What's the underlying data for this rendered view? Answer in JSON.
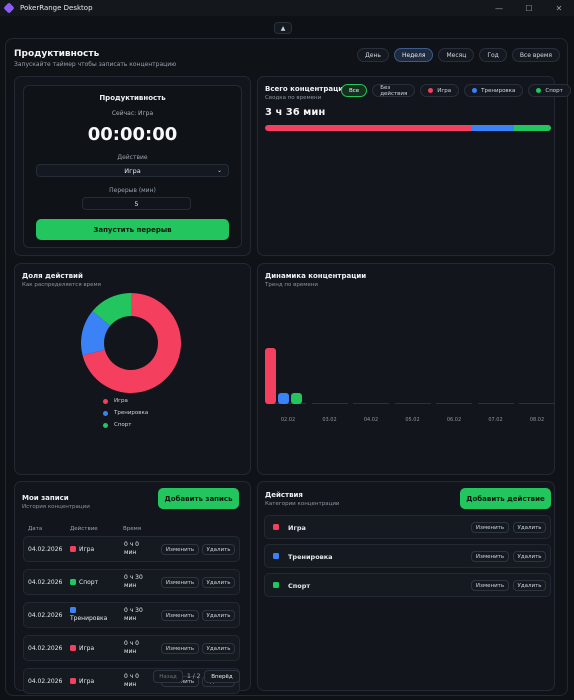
{
  "window": {
    "title": "PokerRange Desktop",
    "min_glyph": "—",
    "max_glyph": "☐",
    "close_glyph": "✕"
  },
  "collapse_glyph": "▲",
  "header": {
    "title": "Продуктивность",
    "subtitle": "Запускайте таймер чтобы записать концентрацию"
  },
  "periods": [
    {
      "label": "День",
      "active": false
    },
    {
      "label": "Неделя",
      "active": true
    },
    {
      "label": "Месяц",
      "active": false
    },
    {
      "label": "Год",
      "active": false
    },
    {
      "label": "Все время",
      "active": false
    }
  ],
  "timer": {
    "title": "Продуктивность",
    "now_text": "Сейчас: Игра",
    "time": "00:00:00",
    "action_label": "Действие",
    "action_value": "Игра",
    "break_label": "Перерыв (мин)",
    "break_value": "5",
    "start_button": "Запустить перерыв"
  },
  "total": {
    "title": "Всего концентрации",
    "subtitle": "Сводка по времени",
    "value": "3 ч 36 мин",
    "filters": [
      {
        "label": "Все",
        "active": true,
        "color": ""
      },
      {
        "label": "Без действия",
        "active": false,
        "color": ""
      },
      {
        "label": "Игра",
        "active": false,
        "color": "#f43f5e"
      },
      {
        "label": "Тренировка",
        "active": false,
        "color": "#3b82f6"
      },
      {
        "label": "Спорт",
        "active": false,
        "color": "#22c55e"
      }
    ],
    "bar_fractions": [
      0.72,
      0.15,
      0.13
    ]
  },
  "share": {
    "title": "Доля действий",
    "subtitle": "Как распределяется время",
    "legend": [
      {
        "label": "Игра",
        "color": "#f43f5e"
      },
      {
        "label": "Тренировка",
        "color": "#3b82f6"
      },
      {
        "label": "Спорт",
        "color": "#22c55e"
      }
    ]
  },
  "dynamics": {
    "title": "Динамика концентрации",
    "subtitle": "Тренд по времени"
  },
  "chart_data": [
    {
      "type": "pie",
      "title": "Доля действий",
      "categories": [
        "Игра",
        "Тренировка",
        "Спорт"
      ],
      "values": [
        71,
        15,
        14
      ],
      "colors": [
        "#f43f5e",
        "#3b82f6",
        "#22c55e"
      ]
    },
    {
      "type": "bar",
      "title": "Динамика концентрации",
      "categories": [
        "02.02",
        "03.02",
        "04.02",
        "05.02",
        "06.02",
        "07.02",
        "08.02"
      ],
      "series": [
        {
          "name": "Игра",
          "color": "#f43f5e",
          "values": [
            2.5,
            0,
            0,
            0,
            0,
            0,
            0
          ]
        },
        {
          "name": "Тренировка",
          "color": "#3b82f6",
          "values": [
            0.5,
            0,
            0,
            0,
            0,
            0,
            0
          ]
        },
        {
          "name": "Спорт",
          "color": "#22c55e",
          "values": [
            0.5,
            0,
            0,
            0,
            0,
            0,
            0
          ]
        }
      ]
    }
  ],
  "records": {
    "title": "Мои записи",
    "subtitle": "История концентрации",
    "add_button": "Добавить запись",
    "headers": [
      "Дата",
      "Действие",
      "Время"
    ],
    "rows": [
      {
        "date": "04.02.2026",
        "action": "Игра",
        "color": "#f43f5e",
        "time_l1": "0 ч 0",
        "time_l2": "мин"
      },
      {
        "date": "04.02.2026",
        "action": "Спорт",
        "color": "#22c55e",
        "time_l1": "0 ч 30",
        "time_l2": "мин"
      },
      {
        "date": "04.02.2026",
        "action": "Тренировка",
        "color": "#3b82f6",
        "time_l1": "0 ч 30",
        "time_l2": "мин"
      },
      {
        "date": "04.02.2026",
        "action": "Игра",
        "color": "#f43f5e",
        "time_l1": "0 ч 0",
        "time_l2": "мин"
      },
      {
        "date": "04.02.2026",
        "action": "Игра",
        "color": "#f43f5e",
        "time_l1": "0 ч 0",
        "time_l2": "мин"
      }
    ],
    "edit_label": "Изменить",
    "delete_label": "Удалить",
    "prev": "Назад",
    "page": "1 / 2",
    "next": "Вперёд"
  },
  "actions": {
    "title": "Действия",
    "subtitle": "Категории концентрации",
    "add_button": "Добавить действие",
    "items": [
      {
        "label": "Игра",
        "color": "#f43f5e"
      },
      {
        "label": "Тренировка",
        "color": "#3b82f6"
      },
      {
        "label": "Спорт",
        "color": "#22c55e"
      }
    ],
    "edit_label": "Изменить",
    "delete_label": "Удалить"
  }
}
